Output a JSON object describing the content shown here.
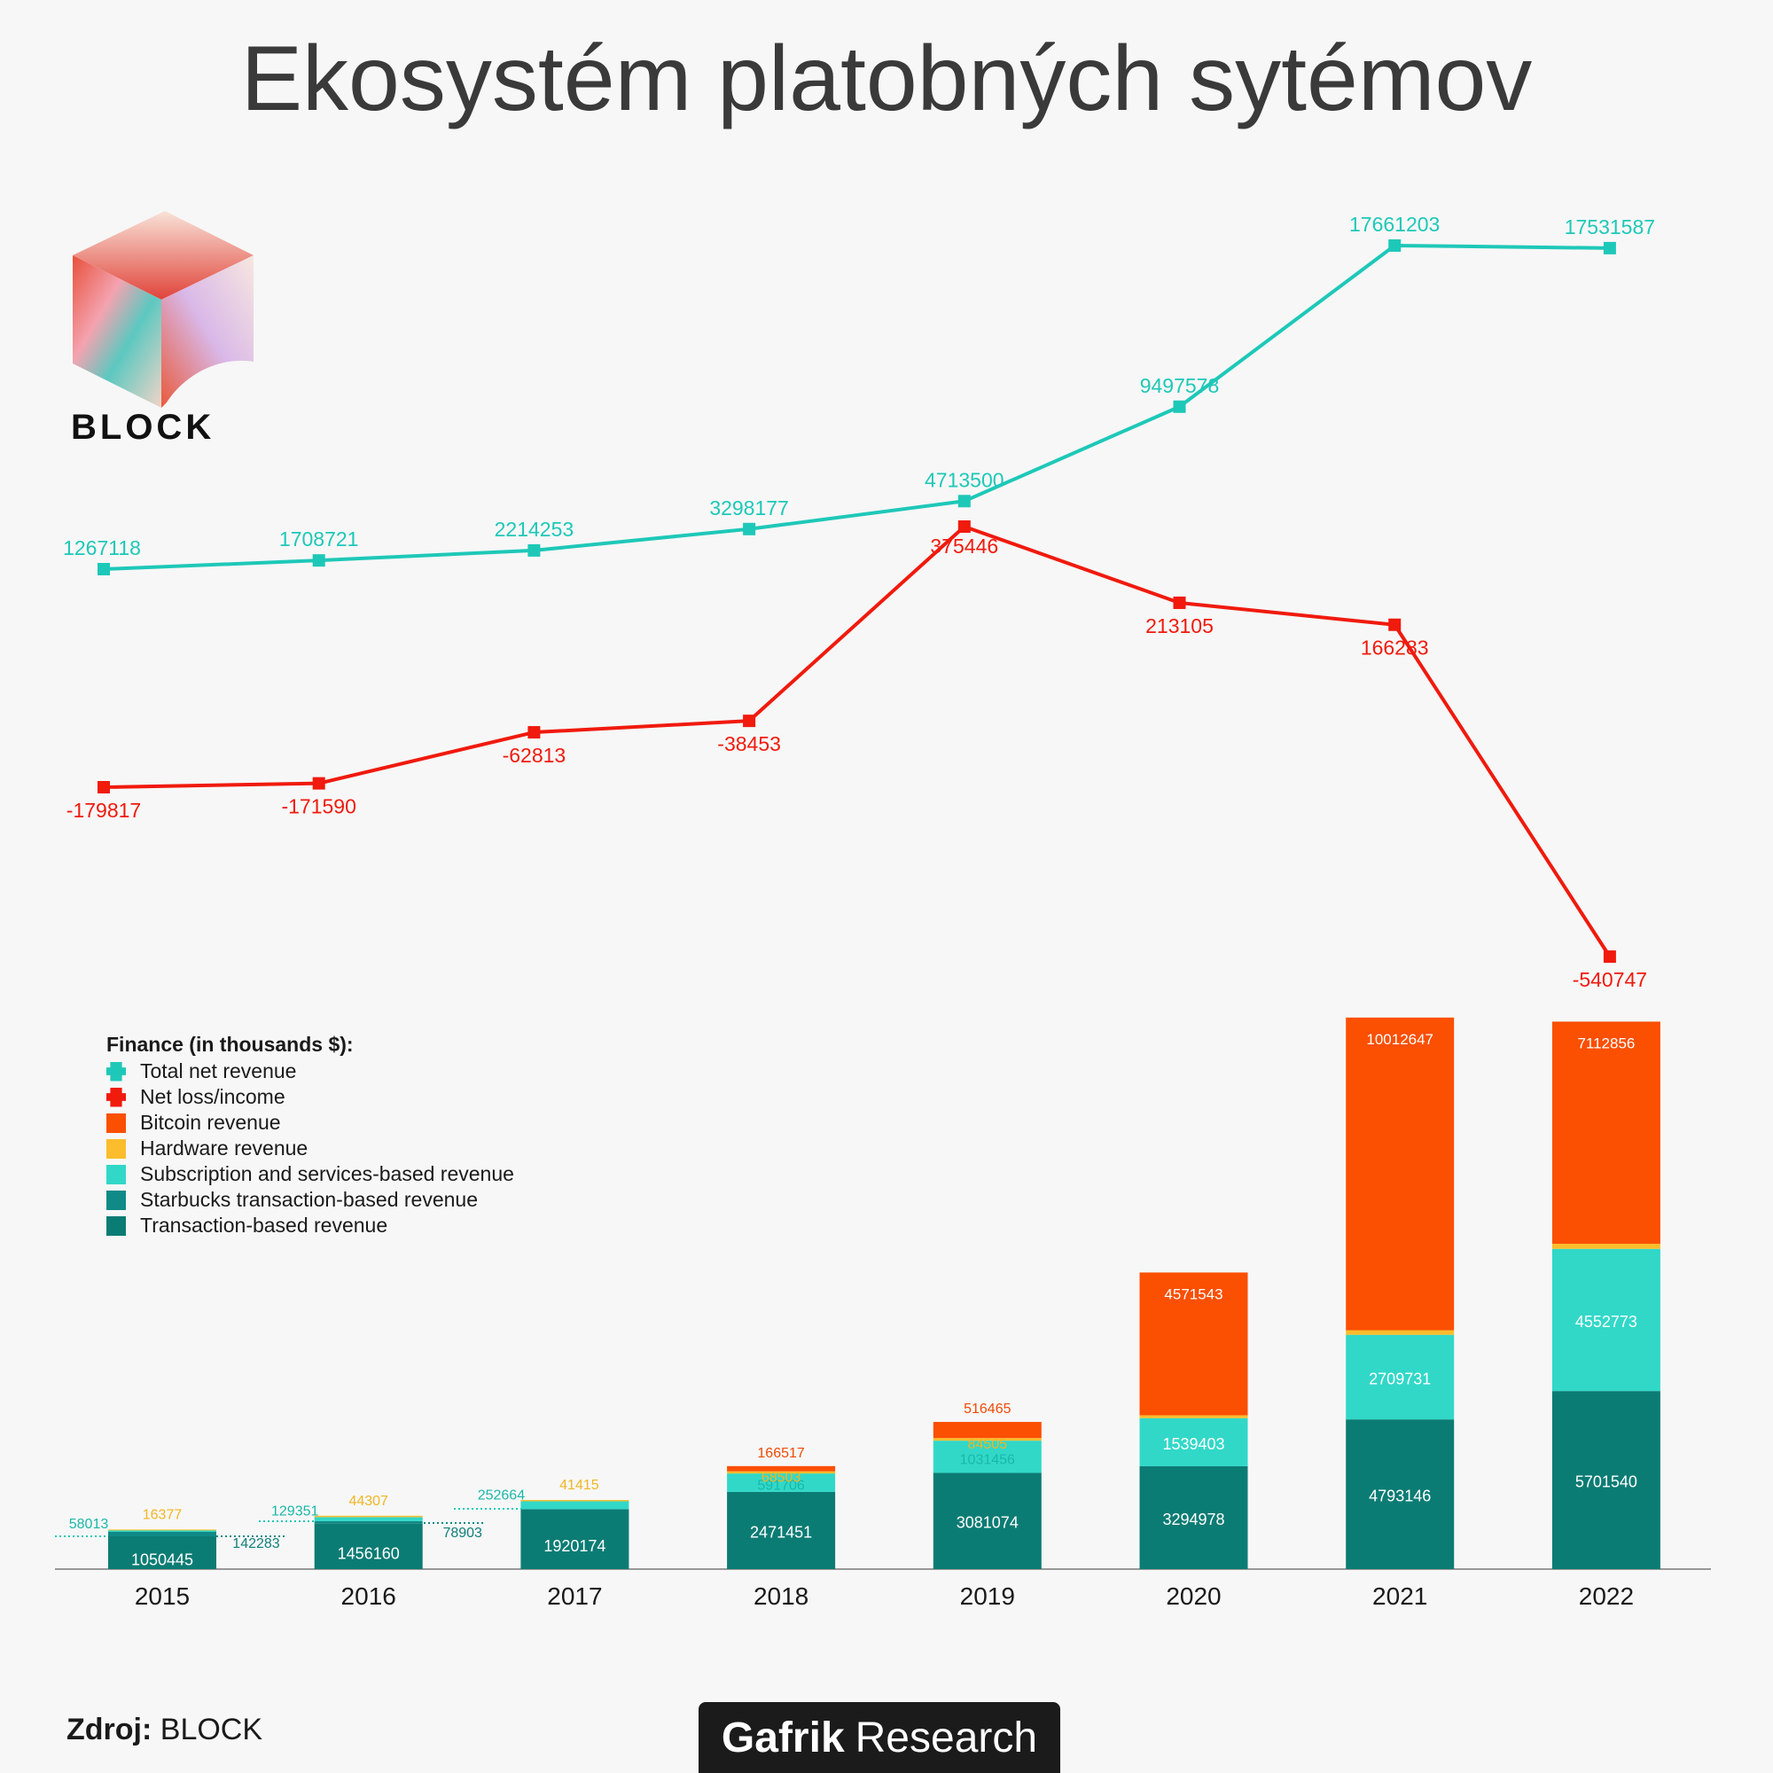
{
  "title": "Ekosystém platobných sytémov",
  "logo": {
    "text": "BLOCK"
  },
  "legend": {
    "title": "Finance (in thousands $):",
    "items": [
      {
        "label": "Total net revenue",
        "color": "#1ec8b8"
      },
      {
        "label": "Net loss/income",
        "color": "#f01a0d"
      },
      {
        "label": "Bitcoin revenue",
        "color": "#fb4f02"
      },
      {
        "label": "Hardware revenue",
        "color": "#fbbd2c"
      },
      {
        "label": "Subscription and services-based revenue",
        "color": "#31d8c8"
      },
      {
        "label": "Starbucks transaction-based revenue",
        "color": "#0f8a86"
      },
      {
        "label": "Transaction-based revenue",
        "color": "#0b7c74"
      }
    ]
  },
  "source": {
    "label": "Zdroj:",
    "value": "BLOCK"
  },
  "brand": {
    "bold": "Gafrik",
    "regular": "Research"
  },
  "chart_data": {
    "type": "bar",
    "categories": [
      "2015",
      "2016",
      "2017",
      "2018",
      "2019",
      "2020",
      "2021",
      "2022"
    ],
    "stacked": true,
    "series": [
      {
        "name": "Transaction-based revenue",
        "color": "#0b7c74",
        "values": [
          1050445,
          1456160,
          1920174,
          2471451,
          3081074,
          3294978,
          4793146,
          5701540
        ]
      },
      {
        "name": "Starbucks transaction-based revenue",
        "color": "#0f8a86",
        "values": [
          142283,
          78903,
          0,
          0,
          0,
          0,
          0,
          0
        ]
      },
      {
        "name": "Subscription and services-based revenue",
        "color": "#31d8c8",
        "values": [
          58013,
          129351,
          252664,
          591706,
          1031456,
          1539403,
          2709731,
          4552773
        ]
      },
      {
        "name": "Hardware revenue",
        "color": "#fbbd2c",
        "values": [
          16377,
          44307,
          41415,
          68503,
          84505,
          91654,
          145679,
          164418
        ]
      },
      {
        "name": "Bitcoin revenue",
        "color": "#fb4f02",
        "values": [
          0,
          0,
          0,
          166517,
          516465,
          4571543,
          10012647,
          7112856
        ]
      }
    ],
    "lines": [
      {
        "name": "Total net revenue",
        "color": "#1ec8b8",
        "values": [
          1267118,
          1708721,
          2214253,
          3298177,
          4713500,
          9497578,
          17661203,
          17531587
        ]
      },
      {
        "name": "Net loss/income",
        "color": "#f01a0d",
        "values": [
          -179817,
          -171590,
          -62813,
          -38453,
          375446,
          213105,
          166283,
          -540747
        ]
      }
    ]
  }
}
